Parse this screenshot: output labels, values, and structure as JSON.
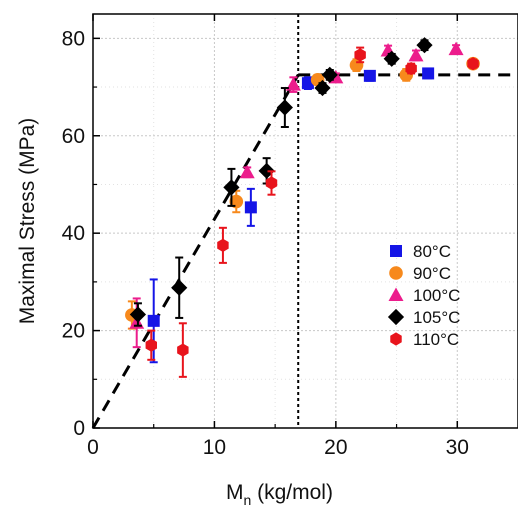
{
  "chart_data": {
    "type": "scatter",
    "title": "",
    "xlabel": "M",
    "xlabel_subscript": "n",
    "xlabel_suffix": " (kg/mol)",
    "ylabel": "Maximal Stress (MPa)",
    "xlim": [
      0,
      35
    ],
    "ylim": [
      0,
      85
    ],
    "xticks": [
      0,
      10,
      20,
      30
    ],
    "yticks": [
      0,
      20,
      40,
      60,
      80
    ],
    "grid": true,
    "grid_style": "dotted",
    "legend_position": "center-right",
    "series": [
      {
        "name": "80°C",
        "marker": "square",
        "color": "#1515e6",
        "points": [
          {
            "x": 5.0,
            "y": 22.0,
            "err": 8.5
          },
          {
            "x": 13.0,
            "y": 45.3,
            "err": 3.8
          },
          {
            "x": 17.7,
            "y": 70.8,
            "err": 1.2
          },
          {
            "x": 22.8,
            "y": 72.3,
            "err": 1.0
          },
          {
            "x": 27.6,
            "y": 72.8,
            "err": 1.0
          }
        ]
      },
      {
        "name": "90°C",
        "marker": "circle",
        "color": "#f7891c",
        "points": [
          {
            "x": 3.2,
            "y": 23.2,
            "err": 2.8
          },
          {
            "x": 11.8,
            "y": 46.5,
            "err": 2.2
          },
          {
            "x": 18.5,
            "y": 71.5,
            "err": 1.0
          },
          {
            "x": 21.7,
            "y": 74.5,
            "err": 1.2
          },
          {
            "x": 25.8,
            "y": 72.5,
            "err": 1.2
          },
          {
            "x": 31.3,
            "y": 74.8,
            "err": 0.8
          }
        ]
      },
      {
        "name": "100°C",
        "marker": "triangle",
        "color": "#ec1c8c",
        "points": [
          {
            "x": 3.6,
            "y": 21.6,
            "err": 5.0
          },
          {
            "x": 12.7,
            "y": 52.5,
            "err": 1.0
          },
          {
            "x": 16.5,
            "y": 70.5,
            "err": 1.5
          },
          {
            "x": 20.0,
            "y": 72.0,
            "err": 0.8
          },
          {
            "x": 24.3,
            "y": 77.5,
            "err": 1.0
          },
          {
            "x": 26.6,
            "y": 76.5,
            "err": 1.0
          },
          {
            "x": 29.9,
            "y": 77.8,
            "err": 0.8
          }
        ]
      },
      {
        "name": "105°C",
        "marker": "diamond",
        "color": "#000000",
        "points": [
          {
            "x": 3.7,
            "y": 23.3,
            "err": 2.3
          },
          {
            "x": 7.1,
            "y": 28.8,
            "err": 6.2
          },
          {
            "x": 11.4,
            "y": 49.4,
            "err": 3.8
          },
          {
            "x": 14.3,
            "y": 52.8,
            "err": 2.6
          },
          {
            "x": 15.8,
            "y": 65.8,
            "err": 4.0
          },
          {
            "x": 18.9,
            "y": 69.8,
            "err": 1.0
          },
          {
            "x": 19.5,
            "y": 72.5,
            "err": 1.0
          },
          {
            "x": 24.6,
            "y": 75.8,
            "err": 1.0
          },
          {
            "x": 27.3,
            "y": 78.6,
            "err": 1.0
          }
        ]
      },
      {
        "name": "110°C",
        "marker": "hexagon",
        "color": "#e8141c",
        "points": [
          {
            "x": 4.8,
            "y": 17.0,
            "err": 3.0
          },
          {
            "x": 7.4,
            "y": 16.0,
            "err": 5.5
          },
          {
            "x": 10.7,
            "y": 37.5,
            "err": 3.6
          },
          {
            "x": 14.7,
            "y": 50.3,
            "err": 2.4
          },
          {
            "x": 22.0,
            "y": 76.6,
            "err": 1.5
          },
          {
            "x": 26.2,
            "y": 73.8,
            "err": 1.0
          },
          {
            "x": 31.3,
            "y": 74.8,
            "err": 0.8
          }
        ]
      }
    ],
    "reference_lines": {
      "fit_rising": {
        "x": [
          0,
          16.9
        ],
        "y": [
          0,
          72.5
        ],
        "style": "dashed"
      },
      "fit_plateau": {
        "x": [
          16.9,
          35
        ],
        "y": [
          72.5,
          72.5
        ],
        "style": "dashed"
      },
      "transition_x": 16.9,
      "transition_style": "dotted"
    }
  }
}
